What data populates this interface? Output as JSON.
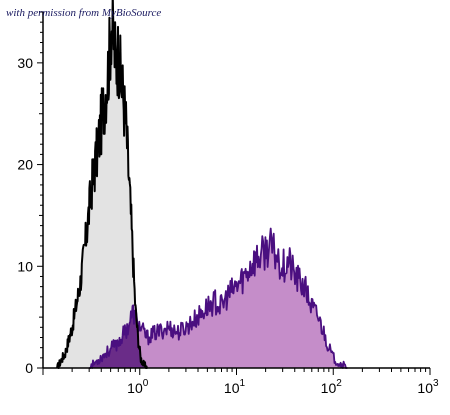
{
  "watermark": "with permission from MyBioSource",
  "colors": {
    "axis": "#000000",
    "control_fill": "#e3e3e3",
    "control_stroke": "#000000",
    "stained_fill": "#c58dc9",
    "stained_stroke": "#4a0f80",
    "overlap_fill": "#6a2c88"
  },
  "chart_data": {
    "type": "area",
    "title": "",
    "xlabel": "",
    "ylabel": "",
    "x_scale": "log",
    "xlim": [
      0.1,
      1000
    ],
    "ylim": [
      0,
      35
    ],
    "grid": false,
    "legend": "none",
    "y_ticks": [
      0,
      10,
      20,
      30
    ],
    "x_ticks": [
      {
        "value": 1,
        "base": "10",
        "exp": "0"
      },
      {
        "value": 10,
        "base": "10",
        "exp": "1"
      },
      {
        "value": 100,
        "base": "10",
        "exp": "2"
      },
      {
        "value": 1000,
        "base": "10",
        "exp": "3"
      }
    ],
    "series": [
      {
        "role": "control",
        "x": [
          0.14,
          0.17,
          0.2,
          0.24,
          0.28,
          0.32,
          0.36,
          0.4,
          0.44,
          0.48,
          0.51,
          0.54,
          0.57,
          0.6,
          0.63,
          0.67,
          0.72,
          0.78,
          0.84,
          0.9,
          0.96,
          1.02,
          1.1,
          1.2
        ],
        "values": [
          0,
          1.5,
          4,
          8,
          13,
          18,
          21,
          24,
          27,
          30,
          34,
          32,
          30,
          31,
          29,
          27,
          24,
          18,
          12,
          6,
          3,
          1,
          0.3,
          0
        ]
      },
      {
        "role": "stained",
        "x": [
          0.3,
          0.45,
          0.6,
          0.75,
          0.85,
          1.0,
          1.2,
          1.5,
          2.0,
          2.5,
          3,
          4,
          5,
          6,
          7,
          8,
          10,
          12,
          15,
          18,
          22,
          26,
          30,
          35,
          40,
          50,
          60,
          70,
          80,
          90,
          100,
          120,
          140
        ],
        "values": [
          0,
          1.5,
          2.5,
          4,
          5.5,
          4,
          3,
          3.5,
          4,
          3.5,
          4,
          5,
          6,
          6.5,
          6,
          7,
          8,
          9,
          10.5,
          11,
          12,
          11,
          10,
          10.5,
          9,
          8,
          6,
          5,
          3.5,
          2,
          1,
          0.4,
          0
        ]
      }
    ]
  }
}
